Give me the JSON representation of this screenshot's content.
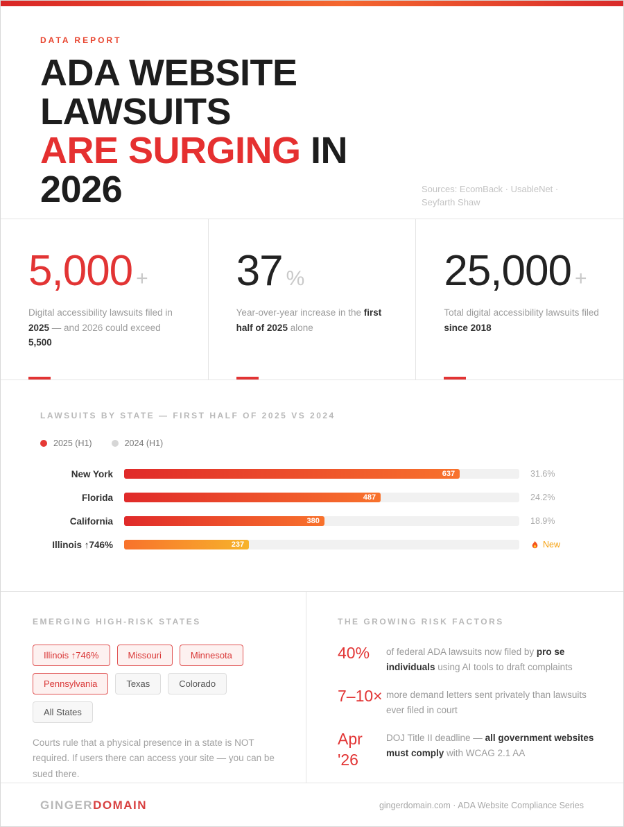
{
  "colors": {
    "accent_red": "#e23434",
    "bar_gradient_main": [
      "#e02a2a",
      "#f8722c"
    ],
    "bar_gradient_new": [
      "#f8722c",
      "#f7b32b"
    ],
    "legend_2025": "#e53935",
    "legend_2024": "#d6d6d6"
  },
  "header": {
    "eyebrow": "DATA REPORT",
    "title_lines": [
      [
        {
          "t": "ADA WEBSITE"
        }
      ],
      [
        {
          "t": "LAWSUITS"
        }
      ],
      [
        {
          "t": "ARE SURGING",
          "red": true
        },
        {
          "t": " IN"
        }
      ],
      [
        {
          "t": "2026"
        }
      ]
    ],
    "sources": "Sources: EcomBack · UsableNet · Seyfarth Shaw"
  },
  "stats": [
    {
      "value": "5,000",
      "suffix": "+",
      "accent": true,
      "desc": [
        {
          "t": "Digital accessibility lawsuits filed in "
        },
        {
          "t": "2025",
          "b": true
        },
        {
          "t": " — and 2026 could exceed "
        },
        {
          "t": "5,500",
          "b": true
        }
      ]
    },
    {
      "value": "37",
      "suffix": "%",
      "accent": false,
      "desc": [
        {
          "t": "Year-over-year increase in the "
        },
        {
          "t": "first half of 2025",
          "b": true
        },
        {
          "t": " alone"
        }
      ]
    },
    {
      "value": "25,000",
      "suffix": "+",
      "accent": false,
      "desc": [
        {
          "t": "Total digital accessibility lawsuits filed "
        },
        {
          "t": "since 2018",
          "b": true
        }
      ]
    }
  ],
  "chart": {
    "heading": "LAWSUITS BY STATE — FIRST HALF OF 2025 VS 2024",
    "legend": [
      {
        "label": "2025 (H1)",
        "color": "#e53935"
      },
      {
        "label": "2024 (H1)",
        "color": "#d6d6d6"
      }
    ]
  },
  "chart_data": {
    "type": "bar",
    "orientation": "horizontal",
    "title": "LAWSUITS BY STATE — FIRST HALF OF 2025 VS 2024",
    "categories": [
      "New York",
      "Florida",
      "California",
      "Illinois ↑746%"
    ],
    "values": [
      637,
      487,
      380,
      237
    ],
    "value_labels": [
      "637",
      "487",
      "380",
      "237"
    ],
    "right_labels": [
      "31.6%",
      "24.2%",
      "18.9%",
      "New"
    ],
    "right_label_types": [
      "percent",
      "percent",
      "percent",
      "new-flag"
    ],
    "xlim": [
      0,
      750
    ],
    "grid": false,
    "legend": [
      "2025 (H1)",
      "2024 (H1)"
    ],
    "legend_position": "top-left",
    "series_note": "2025 (H1) values shown as filled bars; 2024 (H1) shown as light track"
  },
  "emerging": {
    "heading": "EMERGING HIGH-RISK STATES",
    "chips": [
      {
        "label": "Illinois ↑746%",
        "variant": "hot"
      },
      {
        "label": "Missouri",
        "variant": "hot"
      },
      {
        "label": "Minnesota",
        "variant": "hot"
      },
      {
        "label": "Pennsylvania",
        "variant": "hot"
      },
      {
        "label": "Texas",
        "variant": "normal"
      },
      {
        "label": "Colorado",
        "variant": "normal"
      },
      {
        "label": "All States",
        "variant": "normal"
      }
    ],
    "note": "Courts rule that a physical presence in a state is NOT required. If users there can access your site — you can be sued there."
  },
  "risks": {
    "heading": "THE GROWING RISK FACTORS",
    "items": [
      {
        "stat": "40%",
        "desc": [
          {
            "t": "of federal ADA lawsuits now filed by "
          },
          {
            "t": "pro se individuals",
            "b": true
          },
          {
            "t": " using AI tools to draft complaints"
          }
        ]
      },
      {
        "stat": "7–10×",
        "desc": [
          {
            "t": "more demand letters sent privately than lawsuits ever filed in court"
          }
        ]
      },
      {
        "stat": "Apr '26",
        "desc": [
          {
            "t": "DOJ Title II deadline — "
          },
          {
            "t": "all government websites must comply",
            "b": true
          },
          {
            "t": " with WCAG 2.1 AA"
          }
        ]
      }
    ]
  },
  "footer": {
    "brand_gray": "GINGER",
    "brand_red": "DOMAIN",
    "right": "gingerdomain.com · ADA Website Compliance Series"
  }
}
